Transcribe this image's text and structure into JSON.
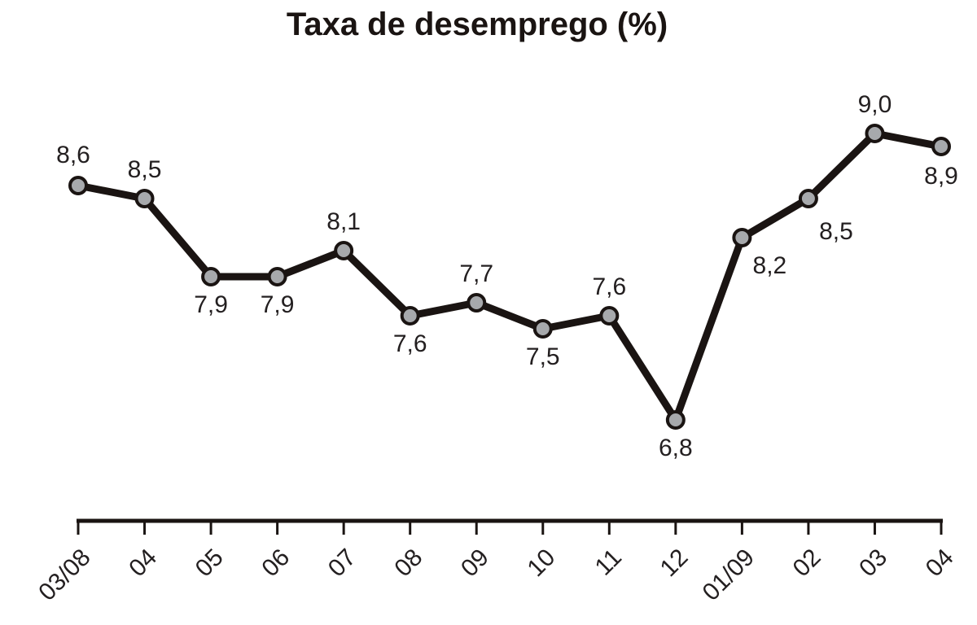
{
  "title": "Taxa de desemprego (%)",
  "chart_data": {
    "type": "line",
    "title": "Taxa de desemprego (%)",
    "xlabel": "",
    "ylabel": "",
    "categories": [
      "03/08",
      "04",
      "05",
      "06",
      "07",
      "08",
      "09",
      "10",
      "11",
      "12",
      "01/09",
      "02",
      "03",
      "04"
    ],
    "series": [
      {
        "name": "Taxa de desemprego (%)",
        "values": [
          8.6,
          8.5,
          7.9,
          7.9,
          8.1,
          7.6,
          7.7,
          7.5,
          7.6,
          6.8,
          8.2,
          8.5,
          9.0,
          8.9
        ],
        "labels": [
          "8,6",
          "8,5",
          "7,9",
          "7,9",
          "8,1",
          "7,6",
          "7,7",
          "7,5",
          "7,6",
          "6,8",
          "8,2",
          "8,5",
          "9,0",
          "8,9"
        ]
      }
    ],
    "grid": false,
    "legend": "none",
    "y_axis_visible": false,
    "line_color": "#1a1412",
    "marker_fill": "#a7a9ac"
  }
}
